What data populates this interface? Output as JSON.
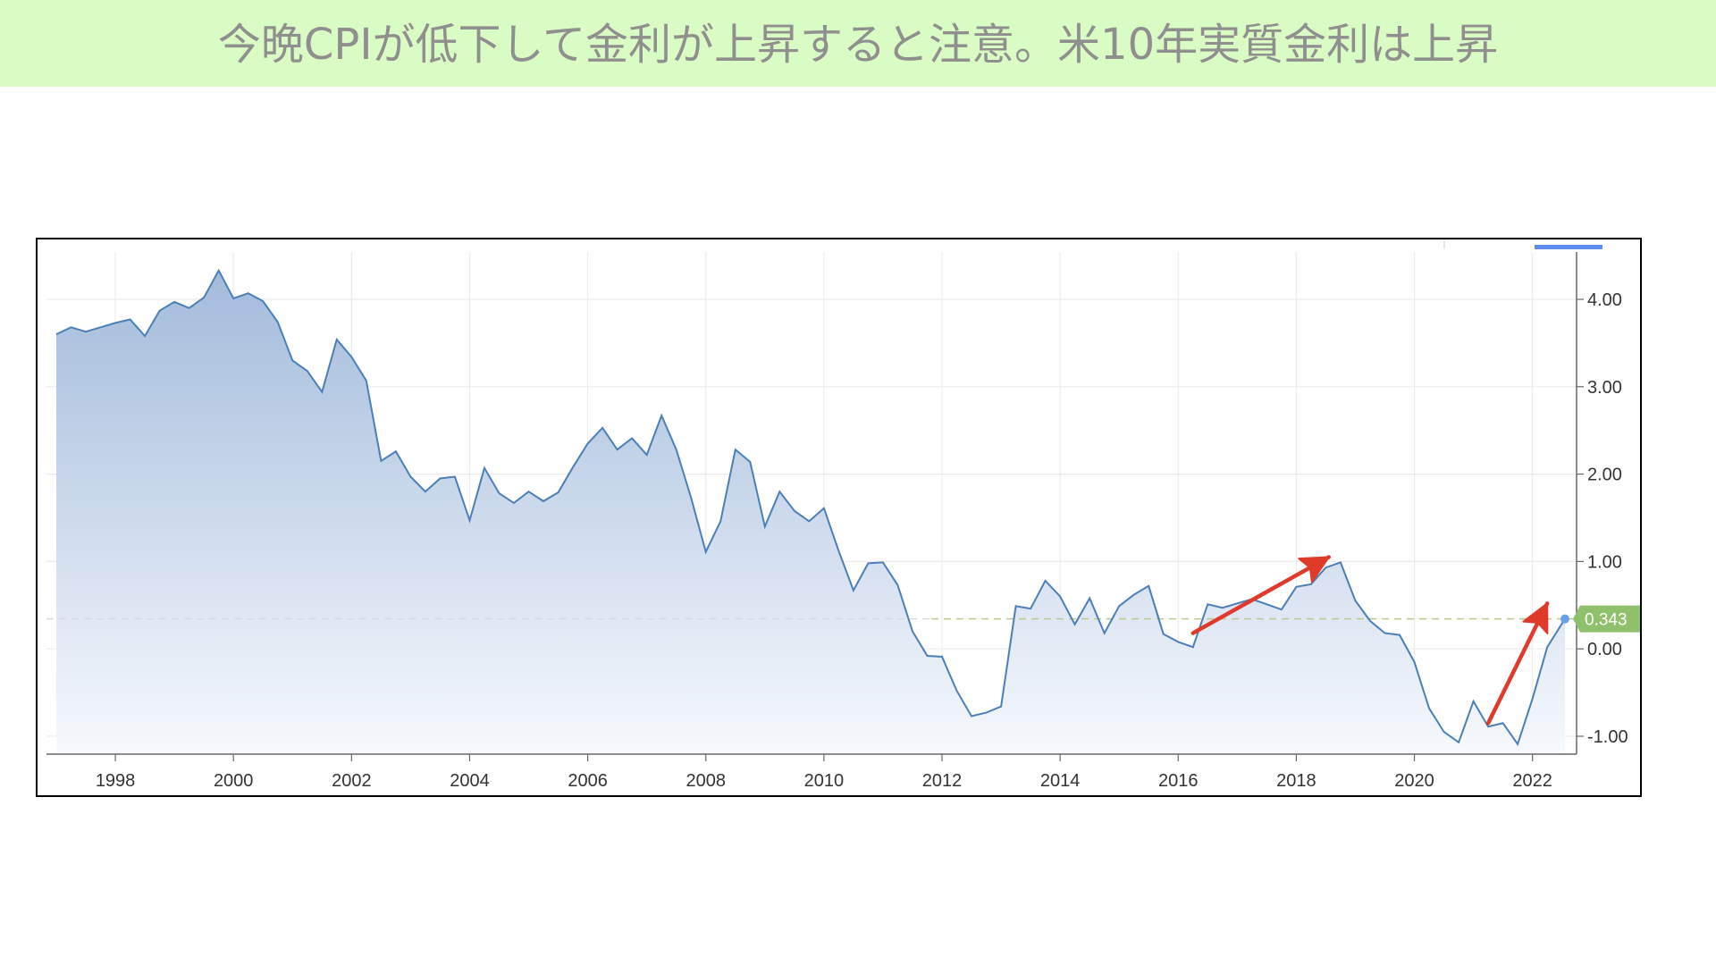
{
  "banner": {
    "text": "今晩CPIが低下して金利が上昇すると注意。米10年実質金利は上昇",
    "bg_color": "#d9fbc4"
  },
  "chart_data": {
    "type": "area",
    "title": "今晩CPIが低下して金利が上昇すると注意。米10年実質金利は上昇",
    "xlabel": "",
    "ylabel": "",
    "xlim": [
      1997.0,
      2022.55
    ],
    "ylim": [
      -1.3,
      4.6
    ],
    "x_ticks": [
      "1998",
      "2000",
      "2002",
      "2004",
      "2006",
      "2008",
      "2010",
      "2012",
      "2014",
      "2016",
      "2018",
      "2020",
      "2022"
    ],
    "y_ticks": [
      "4.00",
      "3.00",
      "2.00",
      "1.00",
      "0.00",
      "-1.00"
    ],
    "y_tick_values": [
      4,
      3,
      2,
      1,
      0,
      -1
    ],
    "line_color": "#4a7fb8",
    "fill_top_color": "#a3bbdb",
    "fill_bottom_color": "#f6f9fd",
    "last_value_label": "0.343",
    "last_value": 0.343,
    "last_value_color": "#8fc06b",
    "annotation_color": "#e03a2a",
    "series": [
      {
        "values": [
          [
            1997.0,
            3.6
          ],
          [
            1997.25,
            3.68
          ],
          [
            1997.5,
            3.63
          ],
          [
            1997.75,
            3.68
          ],
          [
            1998.0,
            3.73
          ],
          [
            1998.25,
            3.77
          ],
          [
            1998.5,
            3.58
          ],
          [
            1998.75,
            3.87
          ],
          [
            1999.0,
            3.97
          ],
          [
            1999.25,
            3.9
          ],
          [
            1999.5,
            4.02
          ],
          [
            1999.75,
            4.33
          ],
          [
            2000.0,
            4.01
          ],
          [
            2000.25,
            4.07
          ],
          [
            2000.5,
            3.98
          ],
          [
            2000.75,
            3.74
          ],
          [
            2001.0,
            3.3
          ],
          [
            2001.25,
            3.18
          ],
          [
            2001.5,
            2.94
          ],
          [
            2001.75,
            3.54
          ],
          [
            2002.0,
            3.34
          ],
          [
            2002.25,
            3.07
          ],
          [
            2002.5,
            2.15
          ],
          [
            2002.75,
            2.26
          ],
          [
            2003.0,
            1.97
          ],
          [
            2003.25,
            1.8
          ],
          [
            2003.5,
            1.95
          ],
          [
            2003.75,
            1.97
          ],
          [
            2004.0,
            1.47
          ],
          [
            2004.25,
            2.07
          ],
          [
            2004.5,
            1.78
          ],
          [
            2004.75,
            1.67
          ],
          [
            2005.0,
            1.8
          ],
          [
            2005.25,
            1.69
          ],
          [
            2005.5,
            1.79
          ],
          [
            2005.75,
            2.08
          ],
          [
            2006.0,
            2.35
          ],
          [
            2006.25,
            2.53
          ],
          [
            2006.5,
            2.28
          ],
          [
            2006.75,
            2.41
          ],
          [
            2007.0,
            2.22
          ],
          [
            2007.25,
            2.67
          ],
          [
            2007.5,
            2.28
          ],
          [
            2007.75,
            1.73
          ],
          [
            2008.0,
            1.11
          ],
          [
            2008.25,
            1.46
          ],
          [
            2008.5,
            2.28
          ],
          [
            2008.75,
            2.14
          ],
          [
            2009.0,
            1.4
          ],
          [
            2009.25,
            1.8
          ],
          [
            2009.5,
            1.58
          ],
          [
            2009.75,
            1.46
          ],
          [
            2010.0,
            1.61
          ],
          [
            2010.25,
            1.12
          ],
          [
            2010.5,
            0.67
          ],
          [
            2010.75,
            0.98
          ],
          [
            2011.0,
            0.99
          ],
          [
            2011.25,
            0.73
          ],
          [
            2011.5,
            0.2
          ],
          [
            2011.75,
            -0.08
          ],
          [
            2012.0,
            -0.09
          ],
          [
            2012.25,
            -0.48
          ],
          [
            2012.5,
            -0.77
          ],
          [
            2012.75,
            -0.73
          ],
          [
            2013.0,
            -0.66
          ],
          [
            2013.25,
            0.49
          ],
          [
            2013.5,
            0.46
          ],
          [
            2013.75,
            0.78
          ],
          [
            2014.0,
            0.6
          ],
          [
            2014.25,
            0.28
          ],
          [
            2014.5,
            0.58
          ],
          [
            2014.75,
            0.18
          ],
          [
            2015.0,
            0.49
          ],
          [
            2015.25,
            0.62
          ],
          [
            2015.5,
            0.72
          ],
          [
            2015.75,
            0.17
          ],
          [
            2016.0,
            0.08
          ],
          [
            2016.25,
            0.02
          ],
          [
            2016.5,
            0.51
          ],
          [
            2016.75,
            0.47
          ],
          [
            2017.0,
            0.52
          ],
          [
            2017.25,
            0.57
          ],
          [
            2017.5,
            0.51
          ],
          [
            2017.75,
            0.45
          ],
          [
            2018.0,
            0.71
          ],
          [
            2018.25,
            0.74
          ],
          [
            2018.5,
            0.93
          ],
          [
            2018.75,
            0.99
          ],
          [
            2019.0,
            0.55
          ],
          [
            2019.25,
            0.32
          ],
          [
            2019.5,
            0.18
          ],
          [
            2019.75,
            0.16
          ],
          [
            2020.0,
            -0.15
          ],
          [
            2020.25,
            -0.68
          ],
          [
            2020.5,
            -0.95
          ],
          [
            2020.75,
            -1.07
          ],
          [
            2021.0,
            -0.6
          ],
          [
            2021.25,
            -0.89
          ],
          [
            2021.5,
            -0.85
          ],
          [
            2021.75,
            -1.09
          ],
          [
            2022.0,
            -0.57
          ],
          [
            2022.25,
            0.02
          ],
          [
            2022.55,
            0.343
          ]
        ]
      }
    ],
    "annotations": [
      {
        "type": "arrow",
        "from": [
          2016.25,
          0.18
        ],
        "to": [
          2018.55,
          1.05
        ]
      },
      {
        "type": "arrow",
        "from": [
          2021.25,
          -0.85
        ],
        "to": [
          2022.25,
          0.52
        ]
      }
    ]
  }
}
